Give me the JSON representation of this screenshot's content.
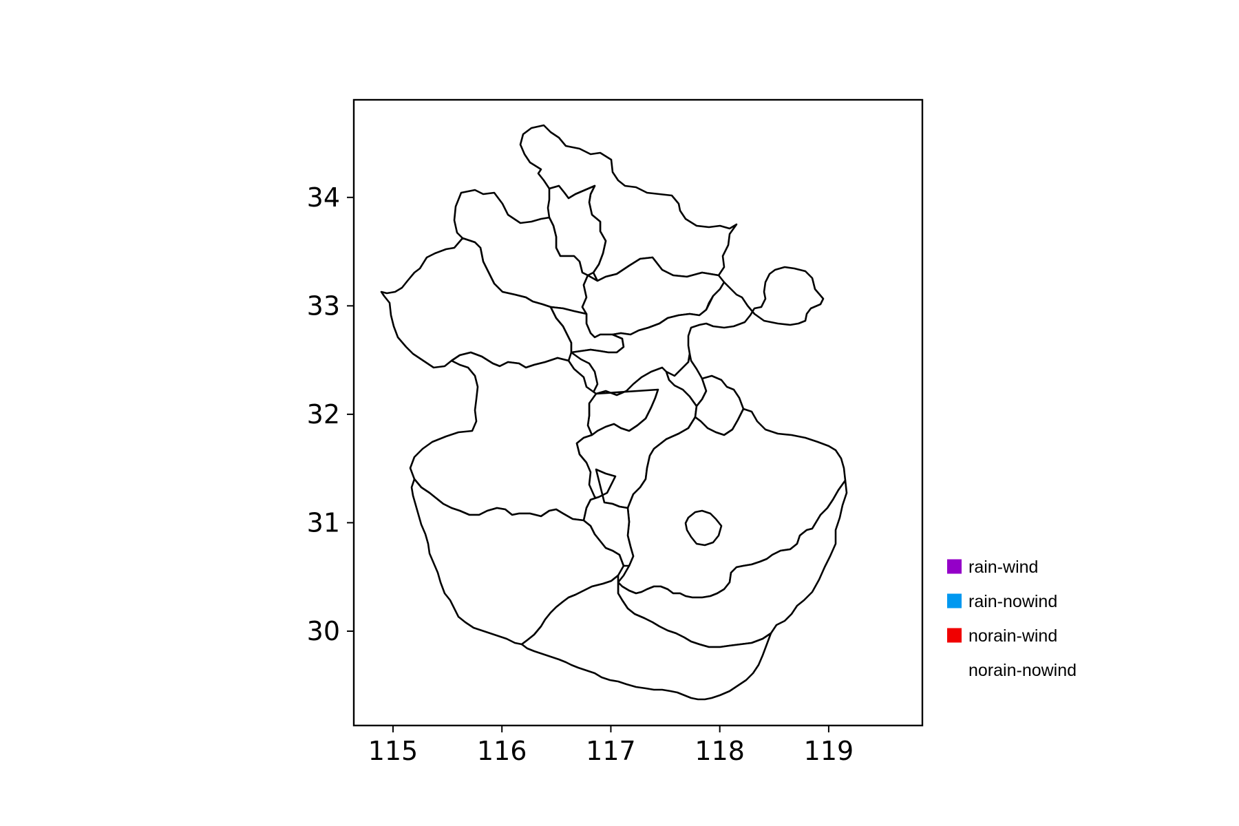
{
  "map": {
    "x_ticks": [
      "115",
      "116",
      "117",
      "118",
      "119"
    ],
    "y_ticks": [
      "34",
      "33",
      "32",
      "31",
      "30"
    ],
    "x_values": [
      115,
      116,
      117,
      118,
      119
    ],
    "y_values": [
      34,
      33,
      32,
      31,
      30
    ],
    "xlim": [
      114.64,
      119.86
    ],
    "ylim": [
      29.13,
      34.9
    ],
    "region_fill": "#ffffff",
    "border_color": "#000000"
  },
  "legend": {
    "items": [
      {
        "label": "rain-wind",
        "color": "#9400c8"
      },
      {
        "label": "rain-nowind",
        "color": "#0098f0"
      },
      {
        "label": "norain-wind",
        "color": "#f00000"
      },
      {
        "label": "norain-nowind",
        "color": "#ffffff"
      }
    ]
  }
}
